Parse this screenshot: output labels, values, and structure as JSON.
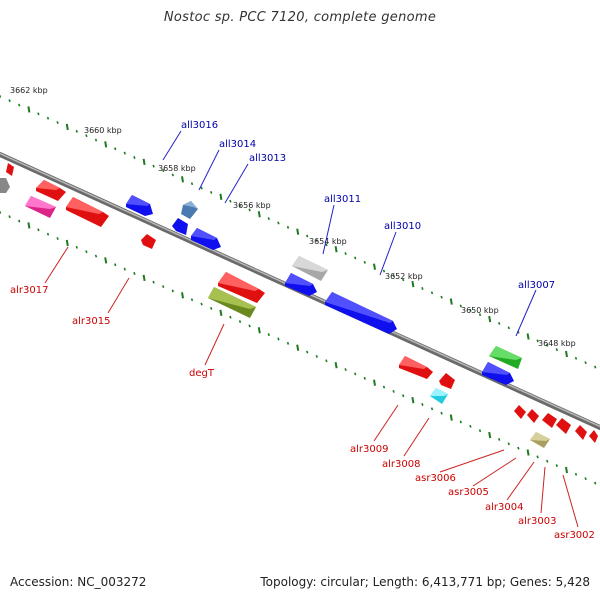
{
  "title": "Nostoc sp. PCC 7120, complete genome",
  "footer": {
    "accession": "Accession: NC_003272",
    "info": "Topology: circular; Length: 6,413,771 bp; Genes: 5,428"
  },
  "scale_labels": [
    "3662 kbp",
    "3660 kbp",
    "3658 kbp",
    "3656 kbp",
    "3654 kbp",
    "3652 kbp",
    "3650 kbp",
    "3648 kbp"
  ],
  "colors": {
    "backbone": "#7a7a7a",
    "tick": "#1e7a1e",
    "reverse_label": "#0000aa",
    "forward_label": "#cc0000",
    "red": "#ff1010",
    "blue": "#1010ee",
    "grey": "#b8b8b8",
    "olive": "#7a9a2a",
    "magenta": "#ee2299",
    "cyan": "#22ddee",
    "green": "#33cc33",
    "steel": "#4a7ab0",
    "khaki": "#b8b070"
  },
  "reverse_gene_labels": [
    "all3016",
    "all3014",
    "all3013",
    "all3011",
    "all3010",
    "all3007"
  ],
  "forward_gene_labels": [
    "alr3017",
    "alr3015",
    "degT",
    "alr3009",
    "alr3008",
    "asr3006",
    "asr3005",
    "alr3004",
    "alr3003",
    "asr3002"
  ]
}
